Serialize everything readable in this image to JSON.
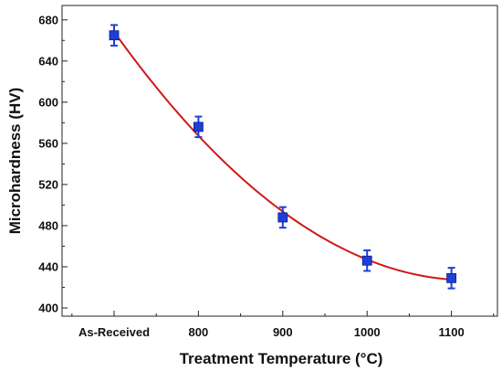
{
  "chart_data": {
    "type": "scatter",
    "xlabel": "Treatment Temperature (°C)",
    "ylabel": "Microhardness (HV)",
    "categories": [
      "As-Received",
      "800",
      "900",
      "1000",
      "1100"
    ],
    "yticks": [
      400,
      440,
      480,
      520,
      560,
      600,
      640,
      680
    ],
    "ylim": [
      392,
      694
    ],
    "grid": false,
    "series": [
      {
        "marker": "square",
        "color": "#1f3fd6",
        "values": [
          665,
          576,
          488,
          446,
          429
        ],
        "error": [
          10,
          10,
          10,
          10,
          10
        ]
      }
    ],
    "fit": {
      "type": "polynomial-curve",
      "color": "#d01818"
    }
  }
}
